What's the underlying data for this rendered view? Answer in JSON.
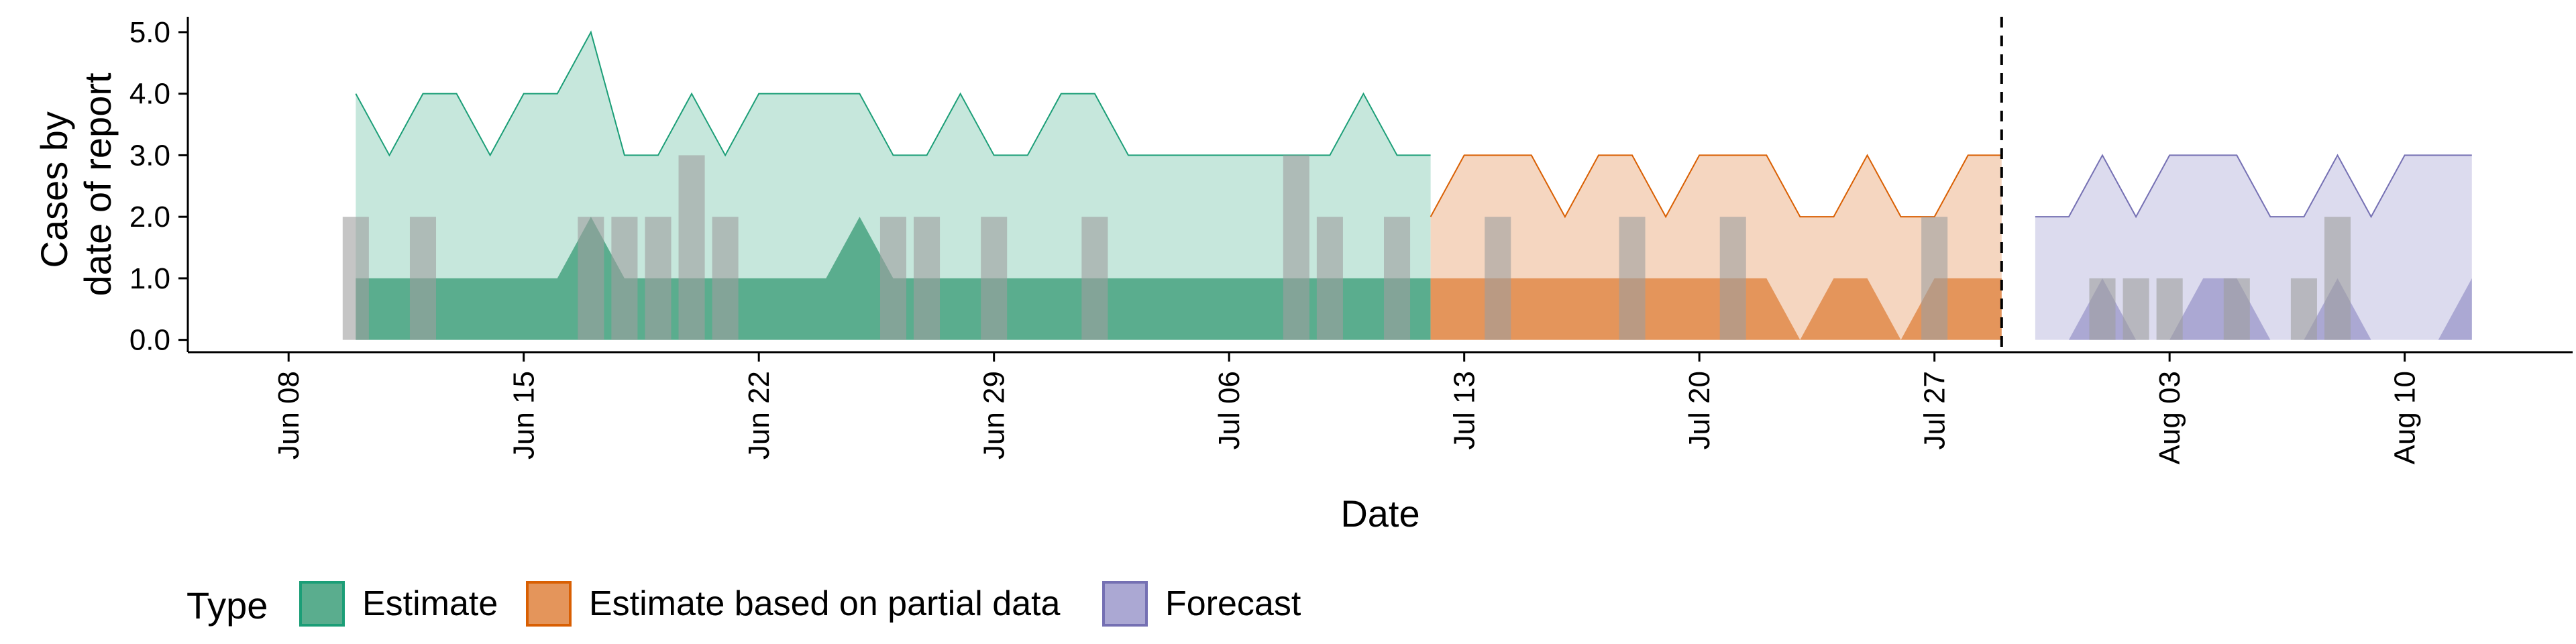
{
  "chart_data": {
    "type": "area",
    "xlabel": "Date",
    "ylabel_lines": [
      "Cases by",
      "date of report"
    ],
    "ylim": [
      -0.2,
      5.25
    ],
    "xlim": [
      "2020-06-05",
      "2020-08-15"
    ],
    "y_ticks": [
      "0.0",
      "1.0",
      "2.0",
      "3.0",
      "4.0",
      "5.0"
    ],
    "x_ticks": [
      {
        "date": "2020-06-08",
        "label": "Jun 08"
      },
      {
        "date": "2020-06-15",
        "label": "Jun 15"
      },
      {
        "date": "2020-06-22",
        "label": "Jun 22"
      },
      {
        "date": "2020-06-29",
        "label": "Jun 29"
      },
      {
        "date": "2020-07-06",
        "label": "Jul 06"
      },
      {
        "date": "2020-07-13",
        "label": "Jul 13"
      },
      {
        "date": "2020-07-20",
        "label": "Jul 20"
      },
      {
        "date": "2020-07-27",
        "label": "Jul 27"
      },
      {
        "date": "2020-08-03",
        "label": "Aug 03"
      },
      {
        "date": "2020-08-10",
        "label": "Aug 10"
      }
    ],
    "forecast_line_date": "2020-07-29",
    "observed": {
      "start_date": "2020-06-10",
      "values": [
        2,
        0,
        2,
        0,
        0,
        0,
        0,
        2,
        2,
        2,
        3,
        2,
        0,
        0,
        0,
        0,
        2,
        2,
        0,
        2,
        0,
        0,
        2,
        0,
        0,
        0,
        0,
        0,
        3,
        2,
        0,
        2,
        0,
        0,
        2,
        0,
        0,
        0,
        2,
        0,
        0,
        2,
        0,
        0,
        0,
        0,
        0,
        2,
        0,
        0,
        0,
        0,
        1,
        1,
        1,
        0,
        1,
        0,
        1,
        2
      ]
    },
    "series": [
      {
        "name": "Estimate",
        "color": "#1b9e77",
        "upper_fill": "#c6e7dc",
        "lower_fill": "#5aad8e",
        "start_date": "2020-06-10",
        "upper": [
          4,
          3,
          4,
          4,
          3,
          4,
          4,
          5,
          3,
          3,
          4,
          3,
          4,
          4,
          4,
          4,
          3,
          3,
          4,
          3,
          3,
          4,
          4,
          3,
          3,
          3,
          3,
          3,
          3,
          3,
          4,
          3,
          3
        ],
        "lower": [
          1,
          1,
          1,
          1,
          1,
          1,
          1,
          2,
          1,
          1,
          1,
          1,
          1,
          1,
          1,
          2,
          1,
          1,
          1,
          1,
          1,
          1,
          1,
          1,
          1,
          1,
          1,
          1,
          1,
          1,
          1,
          1,
          1
        ]
      },
      {
        "name": "Estimate based on partial data",
        "color": "#d95f02",
        "upper_fill": "#f5d6c0",
        "lower_fill": "#e4955b",
        "start_date": "2020-07-12",
        "upper": [
          2,
          3,
          3,
          3,
          2,
          3,
          3,
          2,
          3,
          3,
          3,
          2,
          2,
          3,
          2,
          2,
          3,
          3
        ],
        "lower": [
          1,
          1,
          1,
          1,
          1,
          1,
          1,
          1,
          1,
          1,
          1,
          0,
          1,
          1,
          0,
          1,
          1,
          1
        ]
      },
      {
        "name": "Forecast",
        "color": "#7570b3",
        "upper_fill": "#dcdbee",
        "lower_fill": "#aba8d3",
        "start_date": "2020-07-30",
        "upper": [
          2,
          2,
          3,
          2,
          3,
          3,
          3,
          2,
          2,
          3,
          2,
          3,
          3,
          3
        ],
        "lower": [
          0,
          0,
          1,
          0,
          0,
          1,
          1,
          0,
          0,
          1,
          0,
          0,
          0,
          1
        ]
      }
    ],
    "legend": {
      "title": "Type",
      "position": "bottom",
      "items": [
        "Estimate",
        "Estimate based on partial data",
        "Forecast"
      ]
    },
    "grid": false
  }
}
